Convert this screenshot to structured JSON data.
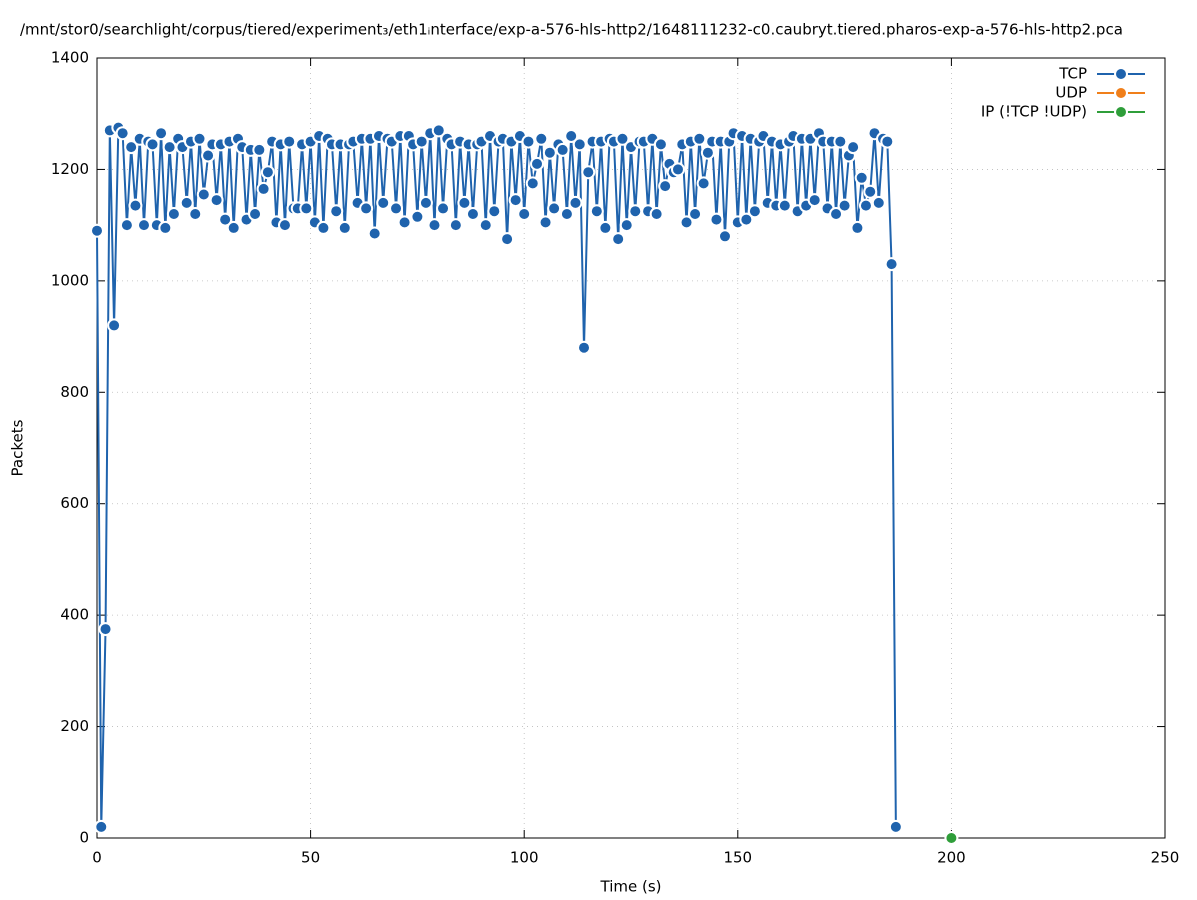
{
  "chart_data": {
    "type": "line",
    "title": "/mnt/stor0/searchlight/corpus/tiered/experiment₃/eth1ᵢnterface/exp-a-576-hls-http2/1648111232-c0.caubryt.tiered.pharos-exp-a-576-hls-http2.pca",
    "x_label": "Time (s)",
    "y_label": "Packets",
    "xlim": [
      0,
      250
    ],
    "xticks": [
      0,
      50,
      100,
      150,
      200,
      250
    ],
    "ylim": [
      0,
      1400
    ],
    "yticks": [
      0,
      200,
      400,
      600,
      800,
      1000,
      1200,
      1400
    ],
    "grid": true,
    "legend": "top-right",
    "series": [
      {
        "name": "TCP",
        "color": "#1f63ad",
        "x": [
          0,
          1,
          2,
          3,
          4,
          5,
          6,
          7,
          8,
          9,
          10,
          11,
          12,
          13,
          14,
          15,
          16,
          17,
          18,
          19,
          20,
          21,
          22,
          23,
          24,
          25,
          26,
          27,
          28,
          29,
          30,
          31,
          32,
          33,
          34,
          35,
          36,
          37,
          38,
          39,
          40,
          41,
          42,
          43,
          44,
          45,
          46,
          47,
          48,
          49,
          50,
          51,
          52,
          53,
          54,
          55,
          56,
          57,
          58,
          59,
          60,
          61,
          62,
          63,
          64,
          65,
          66,
          67,
          68,
          69,
          70,
          71,
          72,
          73,
          74,
          75,
          76,
          77,
          78,
          79,
          80,
          81,
          82,
          83,
          84,
          85,
          86,
          87,
          88,
          89,
          90,
          91,
          92,
          93,
          94,
          95,
          96,
          97,
          98,
          99,
          100,
          101,
          102,
          103,
          104,
          105,
          106,
          107,
          108,
          109,
          110,
          111,
          112,
          113,
          114,
          115,
          116,
          117,
          118,
          119,
          120,
          121,
          122,
          123,
          124,
          125,
          126,
          127,
          128,
          129,
          130,
          131,
          132,
          133,
          134,
          135,
          136,
          137,
          138,
          139,
          140,
          141,
          142,
          143,
          144,
          145,
          146,
          147,
          148,
          149,
          150,
          151,
          152,
          153,
          154,
          155,
          156,
          157,
          158,
          159,
          160,
          161,
          162,
          163,
          164,
          165,
          166,
          167,
          168,
          169,
          170,
          171,
          172,
          173,
          174,
          175,
          176,
          177,
          178,
          179,
          180,
          181,
          182,
          183,
          184,
          185,
          186,
          187
        ],
        "values": [
          1090,
          20,
          375,
          1270,
          920,
          1275,
          1265,
          1100,
          1240,
          1135,
          1255,
          1100,
          1250,
          1245,
          1100,
          1265,
          1095,
          1240,
          1120,
          1255,
          1240,
          1140,
          1250,
          1120,
          1255,
          1155,
          1225,
          1245,
          1145,
          1245,
          1110,
          1250,
          1095,
          1255,
          1240,
          1110,
          1235,
          1120,
          1235,
          1165,
          1195,
          1250,
          1105,
          1245,
          1100,
          1250,
          1130,
          1130,
          1245,
          1130,
          1250,
          1105,
          1260,
          1095,
          1255,
          1245,
          1125,
          1245,
          1095,
          1245,
          1250,
          1140,
          1255,
          1130,
          1255,
          1085,
          1260,
          1140,
          1255,
          1250,
          1130,
          1260,
          1105,
          1260,
          1245,
          1115,
          1250,
          1140,
          1265,
          1100,
          1270,
          1130,
          1255,
          1245,
          1100,
          1250,
          1140,
          1245,
          1120,
          1245,
          1250,
          1100,
          1260,
          1125,
          1250,
          1255,
          1075,
          1250,
          1145,
          1260,
          1120,
          1250,
          1175,
          1210,
          1255,
          1105,
          1230,
          1130,
          1245,
          1235,
          1120,
          1260,
          1140,
          1245,
          880,
          1195,
          1250,
          1125,
          1250,
          1095,
          1255,
          1250,
          1075,
          1255,
          1100,
          1240,
          1125,
          1250,
          1250,
          1125,
          1255,
          1120,
          1245,
          1170,
          1210,
          1195,
          1200,
          1245,
          1105,
          1250,
          1120,
          1255,
          1175,
          1230,
          1250,
          1110,
          1250,
          1080,
          1250,
          1265,
          1105,
          1260,
          1110,
          1255,
          1125,
          1250,
          1260,
          1140,
          1250,
          1135,
          1245,
          1135,
          1250,
          1260,
          1125,
          1255,
          1135,
          1255,
          1145,
          1265,
          1250,
          1130,
          1250,
          1120,
          1250,
          1135,
          1225,
          1240,
          1095,
          1185,
          1135,
          1160,
          1265,
          1140,
          1255,
          1250,
          1030,
          20
        ]
      },
      {
        "name": "UDP",
        "color": "#f07f1a",
        "x": [],
        "values": []
      },
      {
        "name": "IP (!TCP  !UDP)",
        "color": "#2f9e3a",
        "x": [
          200
        ],
        "values": [
          0
        ]
      }
    ]
  }
}
